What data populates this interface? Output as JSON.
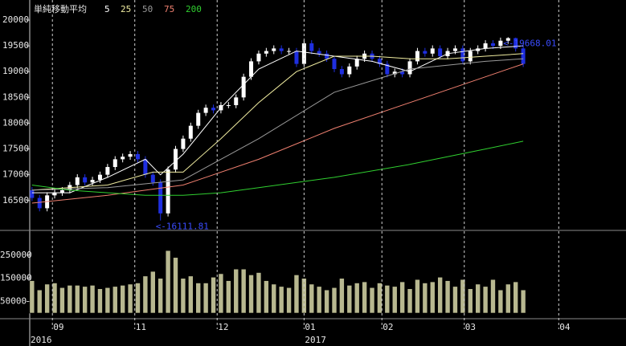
{
  "chart_data": [
    {
      "type": "candlestick",
      "legend_title": "単純移動平均",
      "xlim": [
        -0.3,
        78.6
      ],
      "ylim": [
        15920,
        20390
      ],
      "yticks": [
        16500,
        17000,
        17500,
        18000,
        18500,
        19000,
        19500,
        20000
      ],
      "up_color": "#ffffff",
      "down_color": "#1f2fe0",
      "x": [
        0,
        1,
        2,
        3,
        4,
        5,
        6,
        7,
        8,
        9,
        10,
        11,
        12,
        13,
        14,
        15,
        16,
        17,
        18,
        19,
        20,
        21,
        22,
        23,
        24,
        25,
        26,
        27,
        28,
        29,
        30,
        31,
        32,
        33,
        34,
        35,
        36,
        37,
        38,
        39,
        40,
        41,
        42,
        43,
        44,
        45,
        46,
        47,
        48,
        49,
        50,
        51,
        52,
        53,
        54,
        55,
        56,
        57,
        58,
        59,
        60,
        61,
        62,
        63,
        64,
        65
      ],
      "open": [
        16700,
        16550,
        16350,
        16600,
        16650,
        16700,
        16800,
        16950,
        16850,
        16900,
        17000,
        17150,
        17300,
        17350,
        17400,
        17300,
        17000,
        16850,
        16250,
        17100,
        17500,
        17700,
        17950,
        18200,
        18300,
        18250,
        18350,
        18350,
        18500,
        18900,
        19200,
        19350,
        19400,
        19450,
        19400,
        19400,
        19150,
        19550,
        19400,
        19350,
        19250,
        19050,
        18950,
        19100,
        19250,
        19350,
        19250,
        19150,
        18950,
        19000,
        18950,
        19200,
        19400,
        19350,
        19450,
        19300,
        19400,
        19450,
        19200,
        19400,
        19450,
        19550,
        19500,
        19600,
        19650,
        19450
      ],
      "high": [
        16760,
        16610,
        16660,
        16710,
        16760,
        16860,
        17010,
        17010,
        16960,
        17060,
        17210,
        17360,
        17410,
        17460,
        17460,
        17360,
        17060,
        16910,
        17160,
        17560,
        17760,
        18010,
        18260,
        18360,
        18360,
        18410,
        18410,
        18560,
        18960,
        19260,
        19410,
        19460,
        19510,
        19510,
        19460,
        19460,
        19610,
        19610,
        19460,
        19410,
        19310,
        19110,
        19160,
        19310,
        19410,
        19410,
        19310,
        19210,
        19060,
        19060,
        19260,
        19460,
        19460,
        19510,
        19510,
        19460,
        19510,
        19510,
        19460,
        19510,
        19610,
        19610,
        19660,
        19668.01,
        19660,
        19510
      ],
      "low": [
        16490,
        16290,
        16290,
        16540,
        16590,
        16640,
        16740,
        16790,
        16790,
        16840,
        16940,
        17090,
        17240,
        17290,
        17240,
        16940,
        16790,
        16111.81,
        16190,
        17040,
        17440,
        17640,
        17890,
        18140,
        18190,
        18190,
        18290,
        18290,
        18440,
        18840,
        19140,
        19290,
        19340,
        19340,
        19340,
        19090,
        19090,
        19340,
        19290,
        19190,
        18990,
        18890,
        18890,
        19040,
        19190,
        19190,
        19090,
        18890,
        18890,
        18890,
        18890,
        19140,
        19290,
        19290,
        19240,
        19240,
        19340,
        19140,
        19140,
        19340,
        19390,
        19440,
        19440,
        19540,
        19390,
        19090
      ],
      "close": [
        16550,
        16350,
        16600,
        16650,
        16700,
        16800,
        16950,
        16850,
        16900,
        17000,
        17150,
        17300,
        17350,
        17400,
        17300,
        17000,
        16850,
        16250,
        17100,
        17500,
        17700,
        17950,
        18200,
        18300,
        18250,
        18350,
        18350,
        18500,
        18900,
        19200,
        19350,
        19400,
        19450,
        19400,
        19400,
        19150,
        19550,
        19400,
        19350,
        19250,
        19050,
        18950,
        19100,
        19250,
        19350,
        19250,
        19150,
        18950,
        19000,
        18950,
        19200,
        19400,
        19350,
        19450,
        19300,
        19400,
        19450,
        19200,
        19400,
        19450,
        19550,
        19500,
        19600,
        19650,
        19450,
        19150
      ],
      "series": [
        {
          "name": "5",
          "color": "#ffffff",
          "x": [
            0,
            5,
            10,
            15,
            17,
            20,
            25,
            30,
            35,
            40,
            45,
            50,
            55,
            60,
            65
          ],
          "values": [
            16650,
            16650,
            16950,
            17300,
            17000,
            17400,
            18300,
            19050,
            19400,
            19300,
            19200,
            19000,
            19350,
            19450,
            19500
          ]
        },
        {
          "name": "25",
          "color": "#f0eca0",
          "x": [
            0,
            10,
            16,
            20,
            25,
            30,
            35,
            40,
            45,
            50,
            55,
            60,
            65
          ],
          "values": [
            16700,
            16800,
            17050,
            17050,
            17700,
            18400,
            19000,
            19300,
            19300,
            19250,
            19250,
            19300,
            19350
          ]
        },
        {
          "name": "50",
          "color": "#9a9a9a",
          "x": [
            0,
            10,
            20,
            30,
            40,
            50,
            60,
            65
          ],
          "values": [
            16700,
            16750,
            16900,
            17700,
            18600,
            19050,
            19200,
            19250
          ]
        },
        {
          "name": "75",
          "color": "#f08070",
          "x": [
            0,
            10,
            20,
            30,
            40,
            50,
            60,
            65
          ],
          "values": [
            16450,
            16600,
            16800,
            17300,
            17900,
            18400,
            18900,
            19150
          ]
        },
        {
          "name": "200",
          "color": "#30d030",
          "x": [
            0,
            5,
            10,
            15,
            20,
            25,
            30,
            40,
            50,
            60,
            65
          ],
          "values": [
            16800,
            16700,
            16650,
            16600,
            16600,
            16650,
            16750,
            16950,
            17200,
            17500,
            17650
          ]
        }
      ],
      "annotations": [
        {
          "text": "<-19668.01",
          "x": 63,
          "y": 19668.01
        },
        {
          "text": "<-16111.81",
          "x": 17,
          "y": 16111.81
        }
      ]
    },
    {
      "type": "bar",
      "xlim": [
        -0.3,
        78.6
      ],
      "ylim": [
        0,
        357000
      ],
      "yticks": [
        50000,
        150000,
        250000
      ],
      "color": "#b8b890",
      "x": [
        0,
        1,
        2,
        3,
        4,
        5,
        6,
        7,
        8,
        9,
        10,
        11,
        12,
        13,
        14,
        15,
        16,
        17,
        18,
        19,
        20,
        21,
        22,
        23,
        24,
        25,
        26,
        27,
        28,
        29,
        30,
        31,
        32,
        33,
        34,
        35,
        36,
        37,
        38,
        39,
        40,
        41,
        42,
        43,
        44,
        45,
        46,
        47,
        48,
        49,
        50,
        51,
        52,
        53,
        54,
        55,
        56,
        57,
        58,
        59,
        60,
        61,
        62,
        63,
        64,
        65
      ],
      "values": [
        140000,
        100000,
        125000,
        130000,
        110000,
        120000,
        120000,
        115000,
        120000,
        105000,
        110000,
        115000,
        120000,
        125000,
        130000,
        160000,
        180000,
        150000,
        270000,
        240000,
        150000,
        160000,
        130000,
        130000,
        155000,
        170000,
        140000,
        190000,
        190000,
        165000,
        175000,
        140000,
        125000,
        115000,
        110000,
        165000,
        150000,
        125000,
        115000,
        100000,
        110000,
        150000,
        120000,
        130000,
        135000,
        110000,
        130000,
        120000,
        115000,
        135000,
        105000,
        145000,
        130000,
        135000,
        155000,
        140000,
        115000,
        145000,
        105000,
        125000,
        115000,
        145000,
        100000,
        125000,
        135000,
        100000
      ],
      "xticks": [
        {
          "value": 2.7,
          "label": "09"
        },
        {
          "value": 13.6,
          "label": "11"
        },
        {
          "value": 24.5,
          "label": "12"
        },
        {
          "value": 36,
          "label": "01"
        },
        {
          "value": 46.3,
          "label": "02"
        },
        {
          "value": 57.2,
          "label": "03"
        },
        {
          "value": 69.7,
          "label": "04"
        }
      ],
      "year_labels": [
        {
          "value": -0.3,
          "label": "2016"
        },
        {
          "value": 36,
          "label": "2017"
        }
      ]
    }
  ]
}
